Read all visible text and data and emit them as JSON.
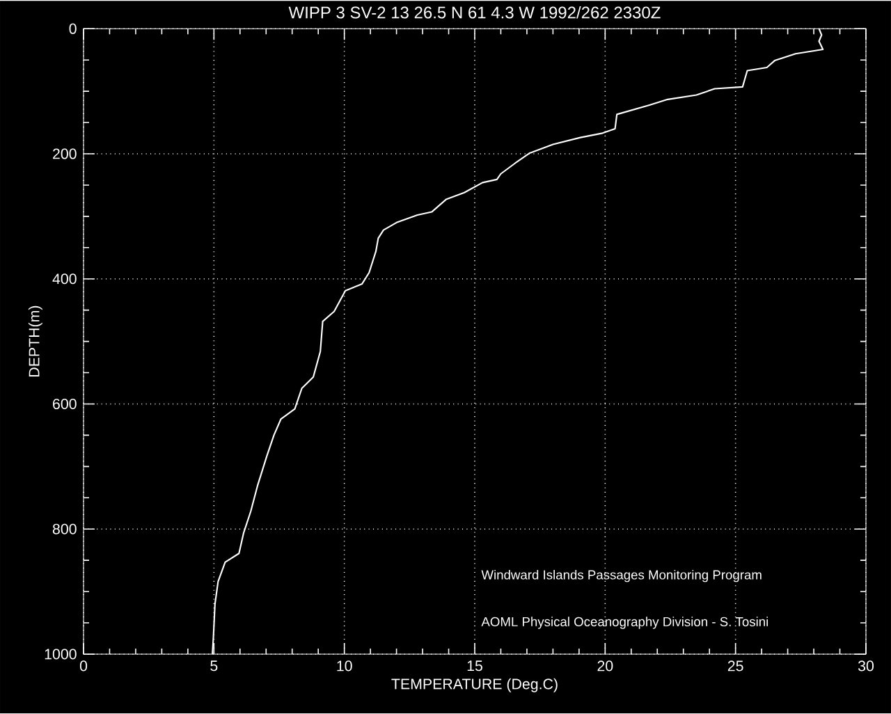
{
  "chart_data": {
    "type": "line",
    "title": "WIPP 3 SV-2  13 26.5 N  61  4.3 W  1992/262 2330Z",
    "xlabel": "TEMPERATURE (Deg.C)",
    "ylabel": "DEPTH(m)",
    "annotations": [
      "Windward Islands Passages Monitoring Program",
      "AOML Physical Oceanography Division - S. Tosini"
    ],
    "series": [
      {
        "color": "#ffffff",
        "x": [
          28.2,
          28.3,
          28.2,
          28.35,
          27.3,
          26.5,
          26.2,
          25.45,
          25.27,
          24.2,
          23.5,
          22.4,
          21.7,
          20.45,
          20.38,
          19.9,
          19.05,
          18.0,
          17.1,
          16.55,
          16.0,
          15.85,
          15.3,
          14.6,
          13.9,
          13.35,
          12.8,
          12.0,
          11.5,
          11.3,
          11.21,
          10.95,
          10.68,
          10.04,
          9.61,
          9.17,
          9.08,
          8.81,
          8.37,
          8.1,
          7.57,
          7.3,
          7.03,
          6.67,
          6.41,
          6.14,
          5.96,
          5.43,
          5.16,
          5.04,
          4.98,
          4.94
        ],
        "values": [
          0,
          10,
          20,
          33,
          40,
          51,
          62,
          67,
          93,
          96,
          106,
          113,
          122,
          137,
          160,
          167,
          174,
          185,
          199,
          215,
          232,
          241,
          246,
          262,
          273,
          293,
          298,
          310,
          322,
          335,
          356,
          390,
          408,
          419,
          452,
          468,
          516,
          557,
          575,
          608,
          624,
          650,
          683,
          731,
          772,
          806,
          839,
          853,
          884,
          920,
          973,
          1000
        ]
      }
    ],
    "xlim": [
      0,
      30
    ],
    "xticks": [
      0,
      5,
      10,
      15,
      20,
      25,
      30
    ],
    "ylim": [
      1000,
      0
    ],
    "yticks": [
      0,
      200,
      400,
      600,
      800,
      1000
    ],
    "grid": true,
    "marker": "none",
    "line_style": "solid"
  }
}
